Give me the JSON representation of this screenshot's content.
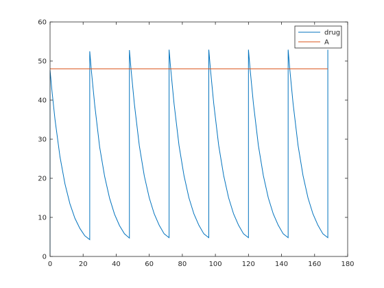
{
  "chart_data": {
    "type": "line",
    "title": "",
    "xlabel": "",
    "ylabel": "",
    "xlim": [
      0,
      180
    ],
    "ylim": [
      0,
      60
    ],
    "xticks": [
      0,
      20,
      40,
      60,
      80,
      100,
      120,
      140,
      160,
      180
    ],
    "yticks": [
      0,
      10,
      20,
      30,
      40,
      50,
      60
    ],
    "grid": false,
    "legend": "top-right",
    "series": [
      {
        "name": "drug",
        "color": "#0072bd",
        "x": [
          0,
          0,
          1,
          3,
          6,
          9,
          12,
          15,
          18,
          21,
          24,
          24,
          25,
          27,
          30,
          33,
          36,
          39,
          42,
          45,
          48,
          48,
          49,
          51,
          54,
          57,
          60,
          63,
          66,
          69,
          72,
          72,
          73,
          75,
          78,
          81,
          84,
          87,
          90,
          93,
          96,
          96,
          97,
          99,
          102,
          105,
          108,
          111,
          114,
          117,
          120,
          120,
          121,
          123,
          126,
          129,
          132,
          135,
          138,
          141,
          144,
          144,
          145,
          147,
          150,
          153,
          156,
          159,
          162,
          165,
          168,
          168
        ],
        "y": [
          0,
          47.7,
          43.0,
          35.0,
          25.5,
          18.6,
          13.5,
          9.8,
          7.2,
          5.3,
          4.3,
          52.5,
          47.5,
          38.8,
          28.0,
          20.5,
          14.9,
          10.8,
          7.9,
          5.8,
          4.7,
          52.8,
          47.8,
          39.0,
          28.3,
          20.6,
          15.0,
          10.9,
          8.0,
          5.8,
          4.8,
          52.9,
          47.9,
          39.1,
          28.4,
          20.7,
          15.0,
          10.9,
          8.0,
          5.8,
          4.8,
          52.9,
          47.9,
          39.1,
          28.4,
          20.7,
          15.0,
          10.9,
          8.0,
          5.8,
          4.8,
          52.9,
          47.9,
          39.1,
          28.4,
          20.7,
          15.0,
          10.9,
          8.0,
          5.8,
          4.8,
          52.9,
          47.9,
          39.1,
          28.4,
          20.7,
          15.0,
          10.9,
          8.0,
          5.8,
          4.8,
          52.9
        ]
      },
      {
        "name": "A",
        "color": "#d95319",
        "x": [
          0,
          168
        ],
        "y": [
          48,
          48
        ]
      }
    ]
  }
}
